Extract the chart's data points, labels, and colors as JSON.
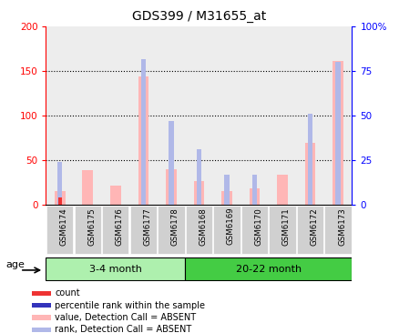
{
  "title": "GDS399 / M31655_at",
  "samples": [
    "GSM6174",
    "GSM6175",
    "GSM6176",
    "GSM6177",
    "GSM6178",
    "GSM6168",
    "GSM6169",
    "GSM6170",
    "GSM6171",
    "GSM6172",
    "GSM6173"
  ],
  "group1_label": "3-4 month",
  "group2_label": "20-22 month",
  "group1_color": "#aef0ae",
  "group2_color": "#44cc44",
  "absent_value": [
    15,
    39,
    22,
    144,
    40,
    27,
    15,
    18,
    34,
    70,
    161
  ],
  "absent_rank": [
    24,
    0,
    0,
    82,
    47,
    31,
    17,
    17,
    0,
    51,
    80
  ],
  "present_value": [
    8,
    0,
    0,
    0,
    0,
    0,
    0,
    0,
    0,
    0,
    0
  ],
  "present_rank": [
    0,
    0,
    0,
    0,
    0,
    0,
    0,
    0,
    0,
    0,
    0
  ],
  "ylim_left": [
    0,
    200
  ],
  "ylim_right": [
    0,
    100
  ],
  "yticks_left": [
    0,
    50,
    100,
    150,
    200
  ],
  "yticks_right": [
    0,
    25,
    50,
    75,
    100
  ],
  "yticklabels_right": [
    "0",
    "25",
    "50",
    "75",
    "100%"
  ],
  "color_absent_value": "#ffb6b6",
  "color_absent_rank": "#b0b8e8",
  "color_present_value": "#ee3333",
  "color_present_rank": "#3333bb",
  "age_label": "age",
  "legend": [
    {
      "color": "#ee3333",
      "label": "count"
    },
    {
      "color": "#3333bb",
      "label": "percentile rank within the sample"
    },
    {
      "color": "#ffb6b6",
      "label": "value, Detection Call = ABSENT"
    },
    {
      "color": "#b0b8e8",
      "label": "rank, Detection Call = ABSENT"
    }
  ],
  "hgrid_at": [
    50,
    100,
    150
  ],
  "bar_bg_color": "#cccccc",
  "white": "#ffffff"
}
